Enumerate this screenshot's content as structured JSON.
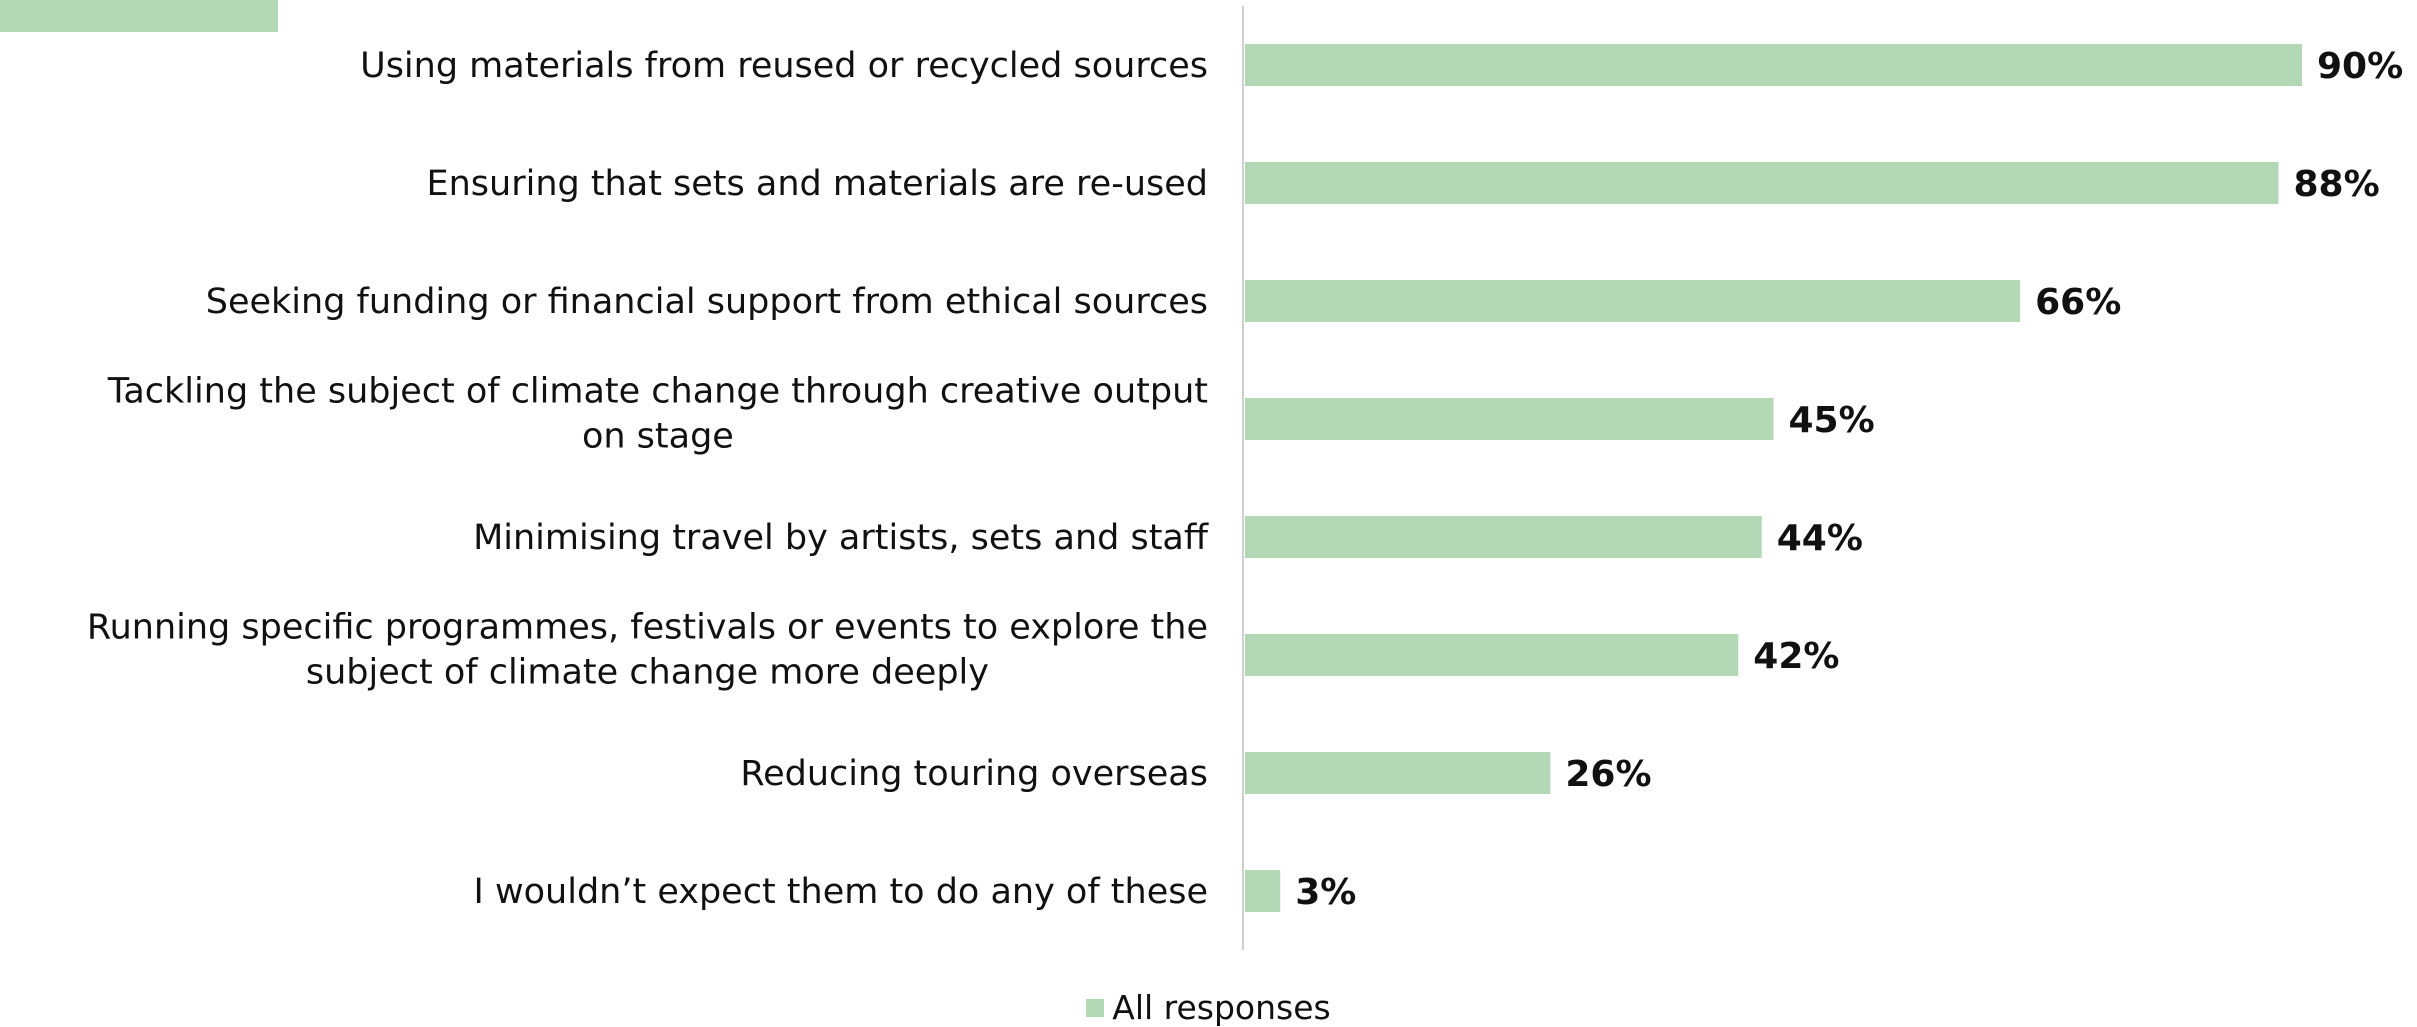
{
  "chart_data": {
    "type": "bar",
    "orientation": "horizontal",
    "categories": [
      "Using materials from reused or recycled sources",
      "Ensuring that sets and materials are re-used",
      "Seeking funding or financial support from ethical sources",
      "Tackling the subject of climate change through creative output on stage",
      "Minimising travel by artists, sets and staff",
      "Running specific programmes, festivals or events to explore the subject of climate change more deeply",
      "Reducing touring overseas",
      "I wouldn’t expect them to do any of these"
    ],
    "category_lines": [
      [
        "Using materials from reused or recycled sources"
      ],
      [
        "Ensuring that sets and materials are re-used"
      ],
      [
        "Seeking funding or financial support from ethical sources"
      ],
      [
        "Tackling the subject of climate change through creative output",
        "on stage"
      ],
      [
        "Minimising travel by artists, sets and staff"
      ],
      [
        "Running specific programmes, festivals or events to explore the",
        "subject of climate change more deeply"
      ],
      [
        "Reducing touring overseas"
      ],
      [
        "I wouldn’t expect them to do any of these"
      ]
    ],
    "series": [
      {
        "name": "All responses",
        "values": [
          90,
          88,
          66,
          45,
          44,
          42,
          26,
          3
        ],
        "value_labels": [
          "90%",
          "88%",
          "66%",
          "45%",
          "44%",
          "42%",
          "26%",
          "3%"
        ]
      }
    ],
    "title": "",
    "xlabel": "",
    "ylabel": "",
    "xlim": [
      0,
      100
    ],
    "grid": false,
    "legend": "bottom-center",
    "colors": {
      "bar": "#b2d8b6",
      "axis": "#d0d0d0",
      "text": "#111111"
    }
  }
}
